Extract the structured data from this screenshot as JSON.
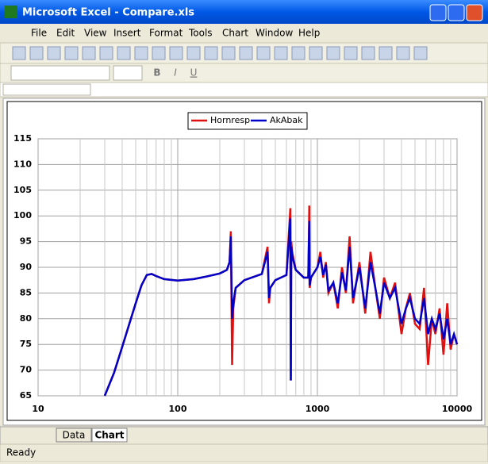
{
  "window": {
    "title": "Microsoft Excel - Compare.xls"
  },
  "menu": [
    "File",
    "Edit",
    "View",
    "Insert",
    "Format",
    "Tools",
    "Chart",
    "Window",
    "Help"
  ],
  "format_buttons": [
    "B",
    "I",
    "U"
  ],
  "chart_data": {
    "type": "line",
    "log_x": true,
    "grid": true,
    "minor_grid": true,
    "x": [
      30,
      35,
      40,
      45,
      50,
      55,
      60,
      65,
      70,
      80,
      100,
      130,
      160,
      200,
      225,
      235,
      240,
      245,
      250,
      260,
      300,
      400,
      440,
      450,
      460,
      500,
      600,
      640,
      645,
      650,
      660,
      670,
      700,
      800,
      860,
      875,
      880,
      900,
      1000,
      1050,
      1100,
      1150,
      1200,
      1300,
      1400,
      1500,
      1600,
      1700,
      1800,
      2000,
      2200,
      2400,
      2600,
      2800,
      3000,
      3300,
      3600,
      4000,
      4300,
      4600,
      5000,
      5400,
      5800,
      6200,
      6600,
      7000,
      7500,
      8000,
      8500,
      9000,
      9500,
      10000
    ],
    "series": [
      {
        "name": "Hornresp",
        "color": "#e01010",
        "values": [
          65,
          69.5,
          74.5,
          79,
          83,
          86.5,
          88.5,
          88.7,
          88.3,
          87.7,
          87.4,
          87.7,
          88.2,
          88.8,
          89.5,
          91,
          97,
          71,
          82,
          86,
          87.5,
          88.7,
          94,
          83,
          86,
          87.5,
          88.5,
          101.5,
          68,
          95,
          93,
          92,
          89.5,
          88,
          88,
          102,
          86,
          88,
          90,
          93,
          88,
          91,
          85,
          87,
          82,
          90,
          85,
          96,
          83,
          91,
          81,
          93,
          86,
          80,
          88,
          84,
          87,
          77,
          82,
          85,
          79,
          78,
          86,
          71,
          80,
          77,
          82,
          73,
          83,
          74,
          77,
          75
        ]
      },
      {
        "name": "AkAbak",
        "color": "#0000c8",
        "values": [
          65,
          69.5,
          74.5,
          79,
          83,
          86.5,
          88.5,
          88.7,
          88.3,
          87.7,
          87.4,
          87.7,
          88.2,
          88.8,
          89.5,
          91,
          96,
          80,
          83,
          86,
          87.5,
          88.7,
          93,
          84,
          86,
          87.5,
          88.5,
          99.5,
          68,
          94,
          92.5,
          91.5,
          89.5,
          88,
          88,
          99,
          86.5,
          88,
          90,
          92,
          88.5,
          90.5,
          85.5,
          87,
          83,
          89,
          85.5,
          94,
          84,
          90,
          82,
          91,
          86,
          81,
          87,
          84,
          86,
          79,
          82,
          84,
          80,
          79,
          84,
          77,
          80,
          78,
          81,
          76,
          80,
          75,
          77,
          75
        ]
      }
    ],
    "xlim": [
      10,
      10000
    ],
    "xticks": [
      10,
      100,
      1000,
      10000
    ],
    "ylim": [
      65,
      115
    ],
    "yticks": [
      65,
      70,
      75,
      80,
      85,
      90,
      95,
      100,
      105,
      110,
      115
    ]
  },
  "sheet_tabs": [
    "Data",
    "Chart"
  ],
  "status": "Ready"
}
